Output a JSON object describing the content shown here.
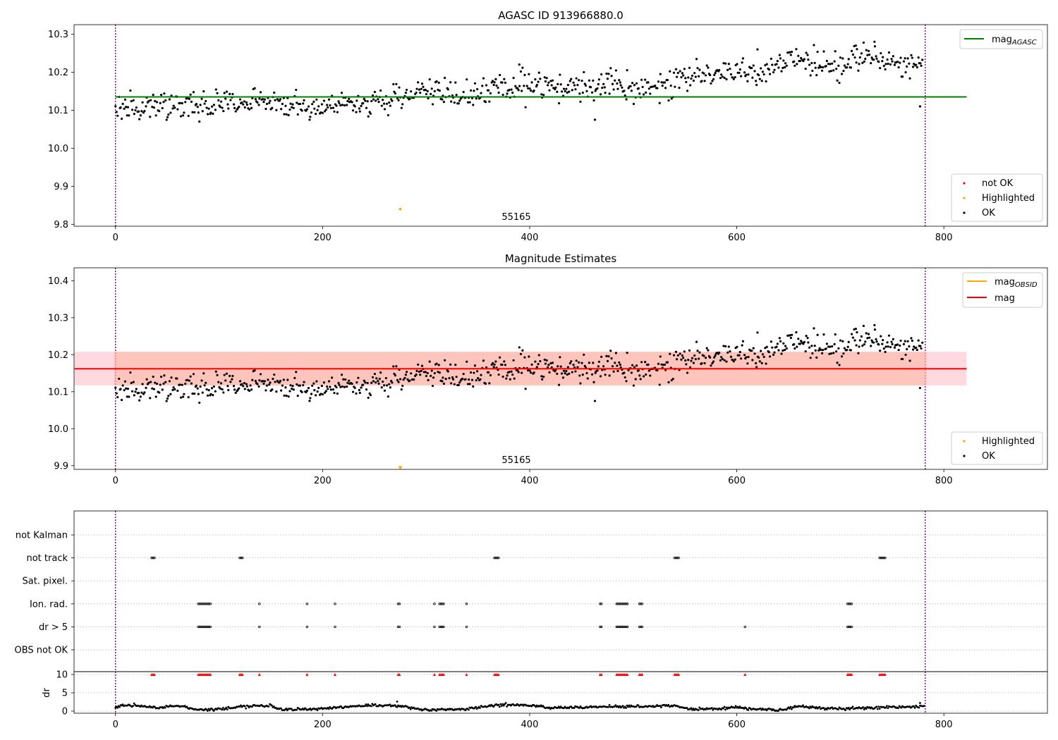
{
  "figure": {
    "panel1_title": "AGASC ID 913966880.0",
    "panel2_title": "Magnitude Estimates",
    "obsid_label": "55165"
  },
  "colors": {
    "ok": "#000000",
    "highlighted": "#ffa500",
    "not_ok": "#ff0000",
    "mag_agasc": "#008000",
    "mag_obsid": "#ffa500",
    "mag": "#ff0000",
    "obs_boundary": "#800080",
    "band_outer": "#ffc0cb",
    "band_inner": "#ffa07a"
  },
  "chart_data": [
    {
      "type": "scatter",
      "title": "AGASC ID 913966880.0",
      "xlabel": "",
      "ylabel": "",
      "xlim": [
        -40,
        900
      ],
      "ylim": [
        9.795,
        10.325
      ],
      "xticks": [
        0,
        200,
        400,
        600,
        800
      ],
      "yticks": [
        9.8,
        9.9,
        10.0,
        10.1,
        10.2,
        10.3
      ],
      "vlines": [
        0,
        782
      ],
      "annotation": "55165",
      "legend_lines": [
        {
          "name": "mag_AGASC",
          "base": "mag",
          "sub": "AGASC",
          "value": 10.135
        }
      ],
      "legend_points": [
        {
          "name": "not OK"
        },
        {
          "name": "Highlighted"
        },
        {
          "name": "OK"
        }
      ],
      "highlighted_points": [
        [
          275,
          9.84
        ]
      ],
      "series_ok": {
        "n": 780,
        "trend": [
          [
            0,
            10.105
          ],
          [
            120,
            10.115
          ],
          [
            150,
            10.13
          ],
          [
            180,
            10.105
          ],
          [
            260,
            10.13
          ],
          [
            290,
            10.15
          ],
          [
            330,
            10.14
          ],
          [
            380,
            10.165
          ],
          [
            430,
            10.16
          ],
          [
            480,
            10.17
          ],
          [
            500,
            10.14
          ],
          [
            540,
            10.185
          ],
          [
            600,
            10.205
          ],
          [
            625,
            10.19
          ],
          [
            650,
            10.235
          ],
          [
            700,
            10.21
          ],
          [
            720,
            10.245
          ],
          [
            780,
            10.21
          ]
        ],
        "noise": 0.035,
        "outliers": [
          [
            463,
            10.075
          ],
          [
            777,
            10.11
          ],
          [
            390,
            10.22
          ],
          [
            620,
            10.26
          ],
          [
            715,
            10.27
          ],
          [
            733,
            10.28
          ]
        ]
      }
    },
    {
      "type": "scatter",
      "title": "Magnitude Estimates",
      "xlabel": "",
      "ylabel": "",
      "xlim": [
        -40,
        900
      ],
      "ylim": [
        9.89,
        10.435
      ],
      "xticks": [
        0,
        200,
        400,
        600,
        800
      ],
      "yticks": [
        9.9,
        10.0,
        10.1,
        10.2,
        10.3,
        10.4
      ],
      "vlines": [
        0,
        782
      ],
      "annotation": "55165",
      "mag_value": 10.162,
      "band_outer": [
        10.117,
        10.208
      ],
      "band_inner": [
        10.117,
        10.208
      ],
      "legend_lines": [
        {
          "name": "mag_OBSID",
          "base": "mag",
          "sub": "OBSID"
        },
        {
          "name": "mag",
          "base": "mag",
          "sub": ""
        }
      ],
      "legend_points": [
        {
          "name": "Highlighted"
        },
        {
          "name": "OK"
        }
      ],
      "highlighted_points": [
        [
          275,
          9.895
        ]
      ]
    },
    {
      "type": "scatter",
      "title": "",
      "xlim": [
        -40,
        900
      ],
      "xticks": [
        0,
        200,
        400,
        600,
        800
      ],
      "vlines": [
        0,
        782
      ],
      "flag_labels": [
        "not Kalman",
        "not track",
        "Sat. pixel.",
        "Ion. rad.",
        "dr > 5",
        "OBS not OK"
      ],
      "flag_points": {
        "not track": [
          [
            35,
            38
          ],
          [
            120,
            123
          ],
          [
            366,
            370
          ],
          [
            540,
            544
          ],
          [
            738,
            744
          ]
        ],
        "Ion. rad.": [
          [
            80,
            92
          ],
          [
            139,
            139
          ],
          [
            185,
            185
          ],
          [
            212,
            212
          ],
          [
            273,
            275
          ],
          [
            308,
            308
          ],
          [
            313,
            317
          ],
          [
            339,
            339
          ],
          [
            468,
            470
          ],
          [
            484,
            495
          ],
          [
            506,
            509
          ],
          [
            707,
            711
          ]
        ],
        "dr > 5": [
          [
            80,
            92
          ],
          [
            139,
            139
          ],
          [
            185,
            185
          ],
          [
            212,
            212
          ],
          [
            273,
            275
          ],
          [
            308,
            308
          ],
          [
            313,
            317
          ],
          [
            339,
            339
          ],
          [
            468,
            470
          ],
          [
            484,
            495
          ],
          [
            506,
            509
          ],
          [
            608,
            608
          ],
          [
            707,
            711
          ]
        ]
      }
    },
    {
      "type": "scatter",
      "title": "",
      "ylabel": "dr",
      "xlim": [
        -40,
        900
      ],
      "ylim": [
        -0.5,
        10.5
      ],
      "xticks": [
        0,
        200,
        400,
        600,
        800
      ],
      "xtick_labels": [
        "0",
        "200",
        "400",
        "600",
        "800"
      ],
      "yticks": [
        0,
        5,
        10
      ],
      "vlines": [
        0,
        782
      ],
      "clip_value": 10,
      "clipped_points": [
        [
          35,
          38
        ],
        [
          80,
          92
        ],
        [
          120,
          123
        ],
        [
          139,
          139
        ],
        [
          185,
          185
        ],
        [
          212,
          212
        ],
        [
          273,
          275
        ],
        [
          308,
          308
        ],
        [
          313,
          317
        ],
        [
          339,
          339
        ],
        [
          366,
          370
        ],
        [
          468,
          470
        ],
        [
          484,
          495
        ],
        [
          506,
          509
        ],
        [
          540,
          544
        ],
        [
          608,
          608
        ],
        [
          707,
          711
        ],
        [
          738,
          744
        ]
      ],
      "segments": [
        [
          0,
          0.9
        ],
        [
          5,
          1.7
        ],
        [
          40,
          1.0
        ],
        [
          60,
          1.5
        ],
        [
          80,
          0.4
        ],
        [
          110,
          0.7
        ],
        [
          125,
          1.4
        ],
        [
          150,
          1.4
        ],
        [
          160,
          0.4
        ],
        [
          205,
          0.7
        ],
        [
          240,
          1.5
        ],
        [
          265,
          1.6
        ],
        [
          300,
          0.4
        ],
        [
          340,
          0.6
        ],
        [
          372,
          1.7
        ],
        [
          400,
          1.7
        ],
        [
          420,
          0.8
        ],
        [
          470,
          1.2
        ],
        [
          500,
          1.2
        ],
        [
          540,
          1.5
        ],
        [
          560,
          0.4
        ],
        [
          600,
          1.0
        ],
        [
          640,
          0.2
        ],
        [
          660,
          1.3
        ],
        [
          700,
          0.6
        ],
        [
          740,
          1.0
        ],
        [
          782,
          1.3
        ]
      ]
    }
  ]
}
